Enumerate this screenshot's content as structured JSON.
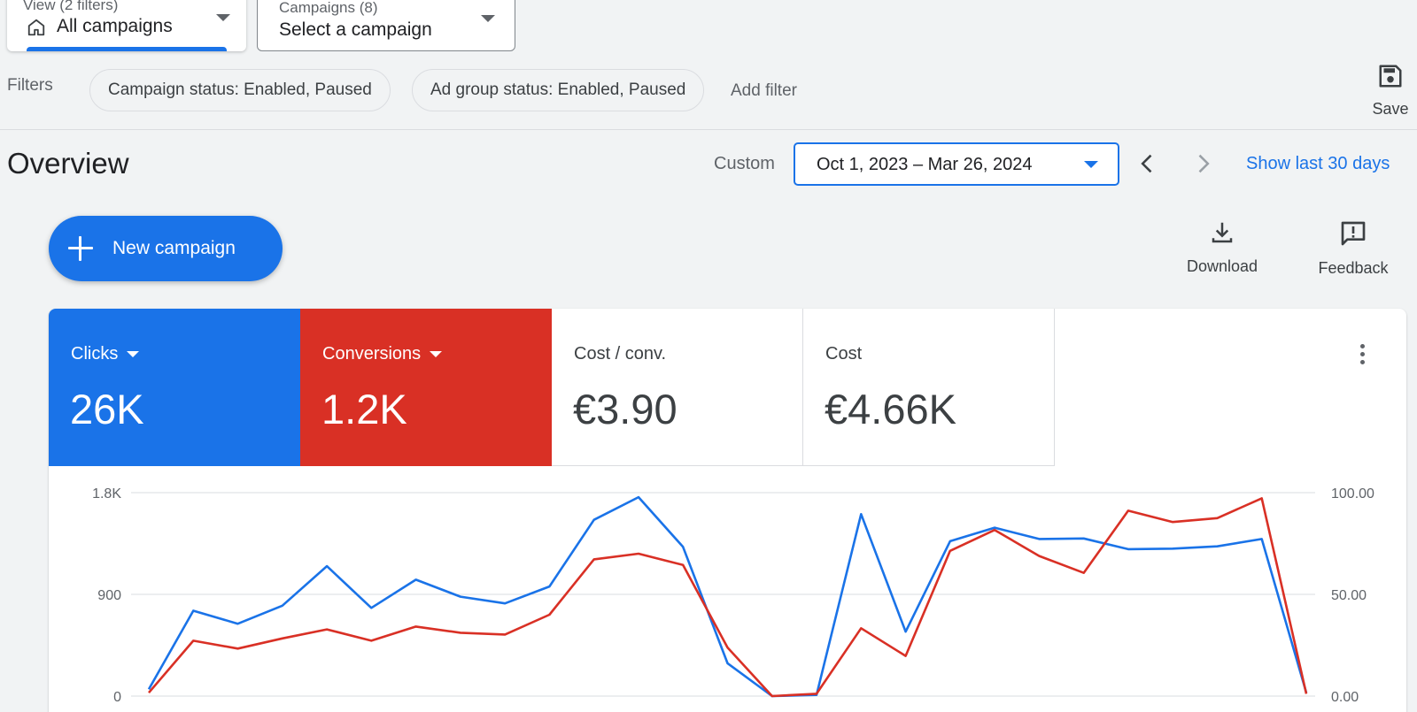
{
  "view_selector": {
    "sublabel": "View (2 filters)",
    "value": "All campaigns"
  },
  "campaign_selector": {
    "sublabel": "Campaigns (8)",
    "value": "Select a campaign"
  },
  "filters": {
    "label": "Filters",
    "chips": [
      "Campaign status: Enabled, Paused",
      "Ad group status: Enabled, Paused"
    ],
    "add_filter": "Add filter"
  },
  "save": {
    "label": "Save"
  },
  "overview": {
    "title": "Overview",
    "date_mode": "Custom",
    "date_range": "Oct 1, 2023 – Mar 26, 2024",
    "show_last": "Show last 30 days"
  },
  "actions": {
    "new_campaign": "New campaign",
    "download": "Download",
    "feedback": "Feedback"
  },
  "metrics": [
    {
      "name": "Clicks",
      "value": "26K",
      "color": "#1a73e8",
      "dropdown": true
    },
    {
      "name": "Conversions",
      "value": "1.2K",
      "color": "#d93025",
      "dropdown": true
    },
    {
      "name": "Cost / conv.",
      "value": "€3.90",
      "dropdown": false
    },
    {
      "name": "Cost",
      "value": "€4.66K",
      "dropdown": false
    }
  ],
  "chart_data": {
    "type": "line",
    "left_axis": {
      "ticks": [
        "1.8K",
        "900",
        "0"
      ],
      "range": [
        0,
        1800
      ]
    },
    "right_axis": {
      "ticks": [
        "100.00",
        "50.00",
        "0.00"
      ],
      "range": [
        0,
        100
      ]
    },
    "grid": true,
    "series": [
      {
        "name": "Clicks",
        "axis": "left",
        "color": "#1a73e8",
        "values": [
          60,
          755,
          640,
          800,
          1150,
          780,
          1030,
          880,
          820,
          970,
          1560,
          1760,
          1320,
          290,
          0,
          10,
          1610,
          570,
          1370,
          1490,
          1390,
          1395,
          1300,
          1305,
          1325,
          1390,
          30
        ]
      },
      {
        "name": "Conversions",
        "axis": "left",
        "color": "#d93025",
        "values": [
          30,
          490,
          420,
          510,
          590,
          490,
          615,
          560,
          545,
          720,
          1210,
          1260,
          1160,
          430,
          0,
          20,
          600,
          355,
          1285,
          1470,
          1240,
          1090,
          1640,
          1540,
          1575,
          1750,
          20
        ]
      }
    ]
  }
}
